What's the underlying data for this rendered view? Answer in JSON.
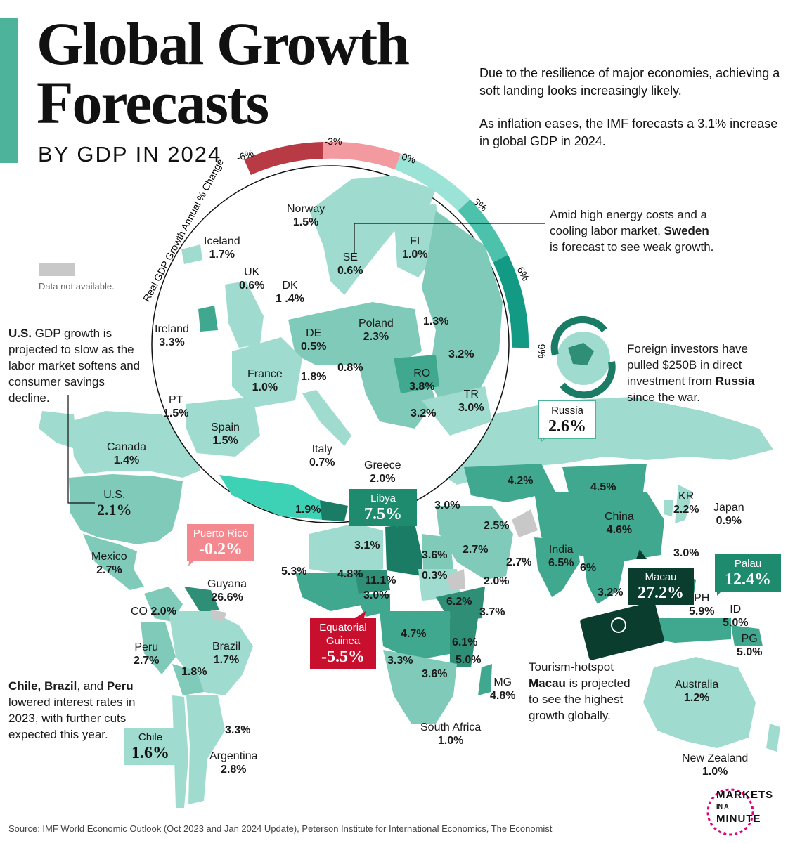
{
  "header": {
    "title_line1": "Global Growth",
    "title_line2": "Forecasts",
    "subtitle": "BY GDP IN 2024",
    "intro_p1": "Due to the resilience of major economies, achieving a soft landing looks increasingly likely.",
    "intro_p2": "As inflation eases, the IMF forecasts a 3.1% increase in global GDP in 2024."
  },
  "scale": {
    "title": "Real GDP Growth Annual % Change",
    "ticks": [
      "-6%",
      "-3%",
      "0%",
      "3%",
      "6%",
      "9%"
    ],
    "colors": [
      "#b83a45",
      "#f39aa0",
      "#9be3d7",
      "#4cc2ac",
      "#129a84",
      "#0d6e5c"
    ]
  },
  "legend": {
    "no_data": "Data not available.",
    "no_data_color": "#c8c8c8"
  },
  "colors": {
    "accent": "#4db39b",
    "land_light": "#9fdccf",
    "land_mid": "#7fcab9",
    "land_dark": "#40a88f",
    "neg": "#f4888f",
    "neg_dark": "#c8102e",
    "callout_dark": "#0b3d2f",
    "callout_teal": "#1e8a6e"
  },
  "europe": [
    {
      "key": "norway",
      "name": "Norway",
      "value": "1.5%"
    },
    {
      "key": "iceland",
      "name": "Iceland",
      "value": "1.7%"
    },
    {
      "key": "se",
      "name": "SE",
      "value": "0.6%"
    },
    {
      "key": "fi",
      "name": "FI",
      "value": "1.0%"
    },
    {
      "key": "uk",
      "name": "UK",
      "value": "0.6%"
    },
    {
      "key": "dk",
      "name": "DK",
      "value": "1 .4%"
    },
    {
      "key": "ireland",
      "name": "Ireland",
      "value": "3.3%"
    },
    {
      "key": "poland",
      "name": "Poland",
      "value": "2.3%"
    },
    {
      "key": "baltic",
      "name": "",
      "value": "1.3%"
    },
    {
      "key": "de",
      "name": "DE",
      "value": "0.5%"
    },
    {
      "key": "ukraine",
      "name": "",
      "value": "3.2%"
    },
    {
      "key": "france",
      "name": "France",
      "value": "1.0%"
    },
    {
      "key": "swiss",
      "name": "",
      "value": "1.8%"
    },
    {
      "key": "austria",
      "name": "",
      "value": "0.8%"
    },
    {
      "key": "ro",
      "name": "RO",
      "value": "3.8%"
    },
    {
      "key": "pt",
      "name": "PT",
      "value": "1.5%"
    },
    {
      "key": "tr",
      "name": "TR",
      "value": "3.0%"
    },
    {
      "key": "bulgaria",
      "name": "",
      "value": "3.2%"
    },
    {
      "key": "spain",
      "name": "Spain",
      "value": "1.5%"
    },
    {
      "key": "italy",
      "name": "Italy",
      "value": "0.7%"
    },
    {
      "key": "greece",
      "name": "Greece",
      "value": "2.0%"
    },
    {
      "key": "morocco",
      "name": "",
      "value": "1.9%"
    }
  ],
  "world": [
    {
      "key": "canada",
      "name": "Canada",
      "value": "1.4%"
    },
    {
      "key": "us",
      "name": "U.S.",
      "value": "2.1%"
    },
    {
      "key": "mexico",
      "name": "Mexico",
      "value": "2.7%"
    },
    {
      "key": "guyana",
      "name": "Guyana",
      "value": "26.6%"
    },
    {
      "key": "co",
      "name": "CO",
      "value": "2.0%"
    },
    {
      "key": "peru",
      "name": "Peru",
      "value": "2.7%"
    },
    {
      "key": "brazil",
      "name": "Brazil",
      "value": "1.7%"
    },
    {
      "key": "bolivia",
      "name": "",
      "value": "1.8%"
    },
    {
      "key": "uruguay",
      "name": "",
      "value": "3.3%"
    },
    {
      "key": "argentina",
      "name": "Argentina",
      "value": "2.8%"
    },
    {
      "key": "algeria",
      "name": "",
      "value": "3.1%"
    },
    {
      "key": "egypt",
      "name": "",
      "value": "3.6%"
    },
    {
      "key": "senegal",
      "name": "",
      "value": "5.3%"
    },
    {
      "key": "mali",
      "name": "",
      "value": "4.8%"
    },
    {
      "key": "niger",
      "name": "",
      "value": "11.1%"
    },
    {
      "key": "sudan",
      "name": "",
      "value": "0.3%"
    },
    {
      "key": "nigeria",
      "name": "",
      "value": "3.0%"
    },
    {
      "key": "ethiopia",
      "name": "",
      "value": "6.2%"
    },
    {
      "key": "kenya",
      "name": "",
      "value": "3.7%"
    },
    {
      "key": "drc",
      "name": "",
      "value": "4.7%"
    },
    {
      "key": "tanzania",
      "name": "",
      "value": "6.1%"
    },
    {
      "key": "mozambique",
      "name": "",
      "value": "5.0%"
    },
    {
      "key": "angola",
      "name": "",
      "value": "3.3%"
    },
    {
      "key": "zimbabwe",
      "name": "",
      "value": "3.6%"
    },
    {
      "key": "mg",
      "name": "MG",
      "value": "4.8%"
    },
    {
      "key": "southafrica",
      "name": "South Africa",
      "value": "1.0%"
    },
    {
      "key": "israel",
      "name": "",
      "value": "3.0%"
    },
    {
      "key": "iran",
      "name": "",
      "value": "2.5%"
    },
    {
      "key": "saudi",
      "name": "",
      "value": "2.7%"
    },
    {
      "key": "oman",
      "name": "",
      "value": "2.7%"
    },
    {
      "key": "yemen",
      "name": "",
      "value": "2.0%"
    },
    {
      "key": "kazakh",
      "name": "",
      "value": "4.2%"
    },
    {
      "key": "mongolia",
      "name": "",
      "value": "4.5%"
    },
    {
      "key": "kr",
      "name": "KR",
      "value": "2.2%"
    },
    {
      "key": "japan",
      "name": "Japan",
      "value": "0.9%"
    },
    {
      "key": "china",
      "name": "China",
      "value": "4.6%"
    },
    {
      "key": "india",
      "name": "India",
      "value": "6.5%"
    },
    {
      "key": "srilanka",
      "name": "",
      "value": "6%"
    },
    {
      "key": "taiwan",
      "name": "",
      "value": "3.0%"
    },
    {
      "key": "malaysia",
      "name": "",
      "value": "3.2%"
    },
    {
      "key": "ph",
      "name": "PH",
      "value": "5.9%"
    },
    {
      "key": "id",
      "name": "ID",
      "value": "5.0%"
    },
    {
      "key": "pg",
      "name": "PG",
      "value": "5.0%"
    },
    {
      "key": "australia",
      "name": "Australia",
      "value": "1.2%"
    },
    {
      "key": "nz",
      "name": "New Zealand",
      "value": "1.0%"
    }
  ],
  "callouts": {
    "libya": {
      "name": "Libya",
      "value": "7.5%"
    },
    "russia": {
      "name": "Russia",
      "value": "2.6%"
    },
    "puertorico": {
      "name": "Puerto Rico",
      "value": "-0.2%"
    },
    "macau": {
      "name": "Macau",
      "value": "27.2%"
    },
    "palau": {
      "name": "Palau",
      "value": "12.4%"
    },
    "eqguinea": {
      "name_line1": "Equatorial",
      "name_line2": "Guinea",
      "value": "-5.5%"
    },
    "chile": {
      "name": "Chile",
      "value": "1.6%"
    }
  },
  "notes": {
    "sweden": {
      "pre": "Amid high energy costs and a cooling labor market, ",
      "bold": "Sweden",
      "post": " is forecast to see weak growth."
    },
    "us": {
      "bold": "U.S.",
      "post": " GDP growth is projected to slow as the labor market softens and consumer savings decline."
    },
    "russia": {
      "pre": "Foreign investors have pulled $250B in direct investment from ",
      "bold": "Russia",
      "post": " since the war."
    },
    "latam": {
      "bold": "Chile, Brazil",
      "mid": ", and ",
      "bold2": "Peru",
      "post": " lowered interest rates in 2023, with further cuts expected this year."
    },
    "macau": {
      "pre": "Tourism-hotspot ",
      "bold": "Macau",
      "post": " is projected to see the highest growth globally."
    }
  },
  "source": "Source:  IMF World Economic Outlook (Oct 2023 and Jan 2024 Update), Peterson Institute for International Economics, The Economist",
  "brand": {
    "line1": "MARKETS",
    "line2": "IN A",
    "line3": "MINUTE"
  }
}
